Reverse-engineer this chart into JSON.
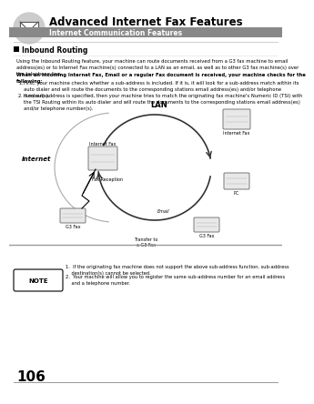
{
  "bg_color": "#ffffff",
  "page_number": "106",
  "title": "Advanced Internet Fax Features",
  "subtitle": "Internet Communication Features",
  "subtitle_bg": "#888888",
  "subtitle_color": "#ffffff",
  "section_title": "Inbound Routing",
  "body_text1": "Using the Inbound Routing feature, your machine can route documents received from a G3 fax machine to email\naddress(es) or to Internet Fax machine(s) connected to a LAN as an email, as well as to other G3 fax machine(s) over\nthe telephone line.",
  "body_bold": "When an incoming Internet Fax, Email or a regular Fax document is received, your machine checks for the\nfollowing:",
  "item1": "First, your machine checks whether a sub-address is included. If it is, it will look for a sub-address match within its\nauto dialer and will route the documents to the corresponding stations email address(es) and/or telephone\nnumber(s).",
  "item2": "If no sub-address is specified, then your machine tries to match the originating fax machine's Numeric ID (TSI) with\nthe TSI Routing within its auto dialer and will route the documents to the corresponding stations email address(es)\nand/or telephone number(s).",
  "note_text1": "1.  If the originating fax machine does not support the above sub-address function, sub-address\n    destination(s) cannot be selected.",
  "note_text2": "2.  Your machine will allow you to register the same sub-address number for an email address\n    and a telephone number.",
  "icon_color": "#cccccc",
  "arc_color": "#333333",
  "arrow_color": "#333333",
  "diagram_bg": "#ffffff"
}
